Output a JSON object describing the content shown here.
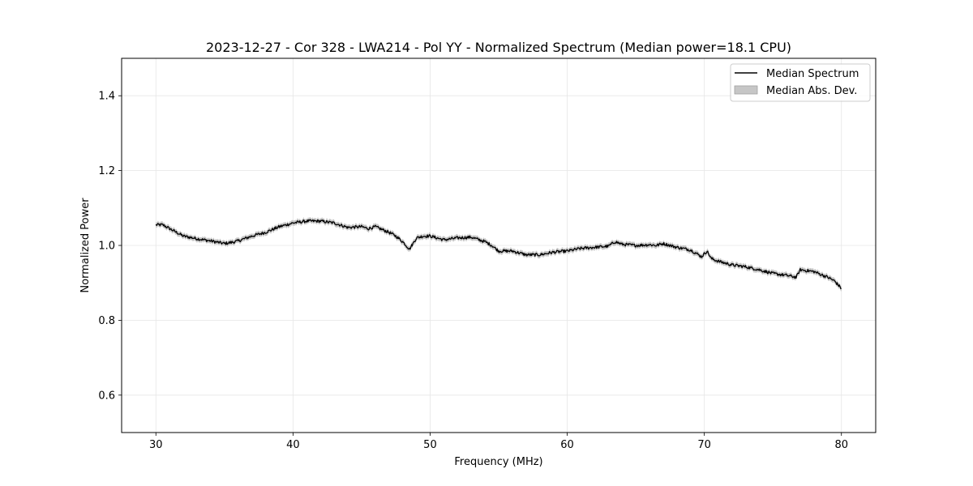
{
  "chart_data": {
    "type": "line",
    "title": "2023-12-27 - Cor 328 - LWA214 - Pol YY - Normalized Spectrum (Median power=18.1 CPU)",
    "xlabel": "Frequency (MHz)",
    "ylabel": "Normalized Power",
    "xlim": [
      27.5,
      82.5
    ],
    "ylim": [
      0.5,
      1.5
    ],
    "xticks": [
      30,
      40,
      50,
      60,
      70,
      80
    ],
    "xtick_labels": [
      "30",
      "40",
      "50",
      "60",
      "70",
      "80"
    ],
    "yticks": [
      0.6,
      0.8,
      1.0,
      1.2,
      1.4
    ],
    "ytick_labels": [
      "0.6",
      "0.8",
      "1.0",
      "1.2",
      "1.4"
    ],
    "grid": true,
    "legend_position": "top-right",
    "series": [
      {
        "name": "Median Spectrum",
        "kind": "line",
        "color": "#000000",
        "x": [
          30,
          30.5,
          31,
          31.5,
          32,
          33,
          34,
          35,
          35.5,
          36,
          37,
          38,
          39,
          40,
          41,
          42,
          43,
          44,
          45,
          45.5,
          46,
          47,
          47.5,
          48,
          48.5,
          49,
          49.5,
          50,
          51,
          52,
          53,
          54,
          54.5,
          55,
          56,
          57,
          58,
          59,
          60,
          61,
          62,
          63,
          63.5,
          64,
          65,
          66,
          66.5,
          67,
          68,
          69,
          69.8,
          70.2,
          70.5,
          71,
          72,
          73,
          74,
          75,
          76,
          76.7,
          77,
          78,
          79,
          79.5,
          80
        ],
        "y": [
          1.055,
          1.055,
          1.045,
          1.035,
          1.025,
          1.018,
          1.012,
          1.005,
          1.008,
          1.012,
          1.025,
          1.035,
          1.05,
          1.06,
          1.065,
          1.065,
          1.06,
          1.048,
          1.05,
          1.045,
          1.05,
          1.035,
          1.025,
          1.01,
          0.99,
          1.02,
          1.025,
          1.025,
          1.015,
          1.02,
          1.022,
          1.01,
          1.0,
          0.985,
          0.985,
          0.975,
          0.975,
          0.982,
          0.985,
          0.992,
          0.995,
          0.998,
          1.01,
          1.003,
          1.0,
          1.002,
          1.0,
          1.005,
          0.995,
          0.988,
          0.97,
          0.985,
          0.965,
          0.958,
          0.948,
          0.943,
          0.935,
          0.925,
          0.92,
          0.915,
          0.935,
          0.93,
          0.915,
          0.905,
          0.885
        ]
      },
      {
        "name": "Median Abs. Dev.",
        "kind": "band",
        "color": "#c6c6c6",
        "half_width": 0.007
      }
    ]
  }
}
